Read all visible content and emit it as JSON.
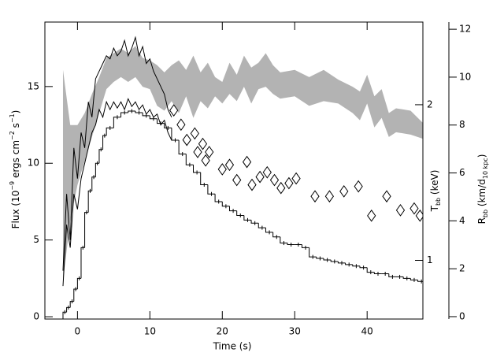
{
  "chart_data": {
    "type": "line",
    "xlabel": "Time (s)",
    "ylabel": [
      {
        "text": "Flux (10"
      },
      {
        "text": "−9",
        "sup": true
      },
      {
        "text": " ergs cm"
      },
      {
        "text": "−2",
        "sup": true
      },
      {
        "text": " s"
      },
      {
        "text": "−1",
        "sup": true
      },
      {
        "text": ")"
      }
    ],
    "y2label": [
      {
        "text": "T"
      },
      {
        "text": "bb",
        "sub": true
      },
      {
        "text": " (keV)"
      }
    ],
    "y3label": [
      {
        "text": "R"
      },
      {
        "text": "bb",
        "sub": true
      },
      {
        "text": " (km/d"
      },
      {
        "text": "10 kpc",
        "sub": true
      },
      {
        "text": ")"
      }
    ],
    "xlim": [
      -4.5,
      47.7
    ],
    "xticks": [
      0,
      10,
      20,
      30,
      40
    ],
    "ylim": [
      -0.15,
      19.2
    ],
    "yticks": [
      0,
      5,
      10,
      15
    ],
    "y2lim": [
      0.77,
      2.89
    ],
    "y2ticks": [
      1,
      2
    ],
    "y2log": true,
    "y3lim": [
      -0.1,
      12.3
    ],
    "y3ticks": [
      0,
      2,
      4,
      6,
      8,
      10,
      12
    ],
    "band": {
      "axis": "y3",
      "color": "#b3b3b3",
      "x": [
        -2,
        -1,
        0,
        1,
        2,
        3,
        4,
        5,
        6,
        7,
        8,
        9,
        10,
        11,
        12,
        13,
        14,
        15,
        16,
        17,
        18,
        19,
        20,
        21,
        22,
        23,
        24,
        25,
        26,
        27,
        28,
        30,
        32,
        34,
        36,
        38,
        39,
        40,
        41,
        42,
        43,
        44,
        46,
        48
      ],
      "lower": [
        1.5,
        4,
        5.5,
        6.5,
        7.5,
        8.5,
        9.5,
        9.8,
        10,
        9.8,
        10,
        9.6,
        9.5,
        8.8,
        8.6,
        9,
        8.5,
        9.2,
        8.3,
        9,
        8.7,
        9.2,
        8.9,
        9.3,
        9,
        9.6,
        8.9,
        9.5,
        9.6,
        9.3,
        9.1,
        9.2,
        8.8,
        9,
        8.9,
        8.5,
        8.2,
        8.9,
        7.9,
        8.3,
        7.5,
        7.7,
        7.6,
        7.4
      ],
      "upper": [
        10.3,
        8,
        8,
        8.5,
        9.3,
        10,
        10.8,
        11,
        11.2,
        11,
        11.3,
        10.8,
        10.7,
        10.5,
        10.2,
        10.5,
        10.7,
        10.3,
        10.9,
        10.2,
        10.6,
        10,
        9.8,
        10.6,
        10.1,
        10.9,
        10.4,
        10.6,
        11,
        10.5,
        10.2,
        10.3,
        10,
        10.3,
        9.9,
        9.6,
        9.4,
        10.1,
        9.2,
        9.5,
        8.5,
        8.7,
        8.6,
        8
      ]
    },
    "series": [
      {
        "style": "line",
        "color": "#000000",
        "x": [
          -2,
          -1.5,
          -1,
          -0.5,
          0,
          0.5,
          1,
          1.5,
          2,
          2.5,
          3,
          3.5,
          4,
          4.5,
          5,
          5.5,
          6,
          6.5,
          7,
          7.5,
          8,
          8.5,
          9,
          9.5,
          10,
          10.5,
          11,
          11.5,
          12,
          12.5,
          13
        ],
        "values": [
          3,
          8,
          5,
          11,
          9,
          12,
          11,
          14,
          13,
          15.5,
          16,
          16.5,
          17,
          16.8,
          17.5,
          17,
          17.3,
          18,
          17,
          17.5,
          18.2,
          17,
          17.6,
          16.5,
          16.8,
          16,
          15.5,
          15,
          14.5,
          13.5,
          13
        ]
      },
      {
        "style": "line",
        "color": "#000000",
        "x": [
          -2,
          -1.5,
          -1,
          -0.5,
          0,
          0.5,
          1,
          1.5,
          2,
          2.5,
          3,
          3.5,
          4,
          4.5,
          5,
          5.5,
          6,
          6.5,
          7,
          7.5,
          8,
          8.5,
          9,
          9.5,
          10,
          10.5,
          11,
          11.5,
          12,
          12.5,
          13
        ],
        "values": [
          2,
          6,
          4.5,
          8,
          7,
          9,
          10,
          11,
          12,
          12.5,
          13.5,
          13,
          14,
          13.5,
          14,
          13.6,
          14,
          13.5,
          14.2,
          13.7,
          14,
          13.5,
          13.8,
          13.2,
          13.5,
          13,
          13.2,
          12.5,
          12.8,
          12,
          11.5
        ]
      },
      {
        "style": "step",
        "color": "#000000",
        "x": [
          -2,
          -1.5,
          -1,
          -0.5,
          0,
          0.5,
          1,
          1.5,
          2,
          2.5,
          3,
          3.5,
          4,
          5,
          6,
          7,
          8,
          9,
          10,
          11,
          12,
          13,
          14,
          15,
          16,
          17,
          18,
          19,
          20,
          21,
          22,
          23,
          24,
          25,
          26,
          27,
          28,
          29,
          30,
          31,
          32,
          33,
          34,
          35,
          36,
          37,
          38,
          39,
          40,
          41,
          42,
          43,
          44,
          45,
          46,
          47
        ],
        "values": [
          0.3,
          0.6,
          1,
          1.8,
          2.5,
          4.5,
          6.8,
          8.2,
          9.1,
          10,
          10.9,
          11.8,
          12.3,
          13,
          13.3,
          13.4,
          13.3,
          13.1,
          12.9,
          12.6,
          12.3,
          11.5,
          10.6,
          9.9,
          9.4,
          8.6,
          8,
          7.5,
          7.2,
          6.9,
          6.6,
          6.3,
          6.1,
          5.8,
          5.5,
          5.2,
          4.8,
          4.7,
          4.7,
          4.5,
          3.9,
          3.8,
          3.7,
          3.6,
          3.5,
          3.4,
          3.3,
          3.2,
          2.9,
          2.8,
          2.8,
          2.6,
          2.6,
          2.5,
          2.4,
          2.3
        ]
      }
    ],
    "diamonds": {
      "axis": "y2",
      "color": "#000000",
      "x": [
        13.3,
        14.3,
        15.1,
        16.2,
        16.6,
        17.3,
        17.7,
        18.2,
        20,
        21,
        22,
        23.4,
        24.1,
        25.2,
        26.2,
        27.2,
        28.1,
        29.2,
        30.2,
        32.8,
        34.8,
        36.8,
        38.8,
        40.6,
        42.7,
        44.6,
        46.5,
        47.3
      ],
      "values": [
        1.95,
        1.83,
        1.71,
        1.76,
        1.62,
        1.68,
        1.56,
        1.62,
        1.5,
        1.53,
        1.43,
        1.55,
        1.4,
        1.45,
        1.48,
        1.43,
        1.38,
        1.41,
        1.44,
        1.33,
        1.33,
        1.36,
        1.39,
        1.22,
        1.33,
        1.25,
        1.26,
        1.22
      ]
    }
  }
}
